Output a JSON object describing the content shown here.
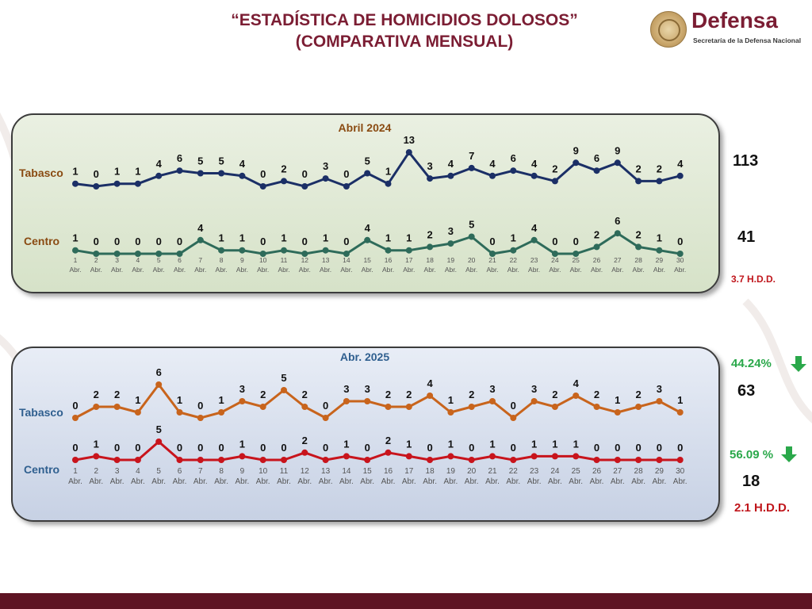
{
  "title": {
    "line1": "“ESTADÍSTICA DE HOMICIDIOS DOLOSOS”",
    "line2": "(COMPARATIVA MENSUAL)"
  },
  "logo": {
    "word": "Defensa",
    "subtitle": "Secretaría de la Defensa Nacional"
  },
  "colors": {
    "tabasco_2024": "#1b2f66",
    "centro_2024": "#2e6b5a",
    "tabasco_2025": "#c8641c",
    "centro_2025": "#c8141c",
    "label_brown": "#8a4b12",
    "label_blue": "#2f5f8f",
    "green": "#2aa84a",
    "red": "#c0161c",
    "title": "#7b1d33"
  },
  "chart_data": [
    {
      "type": "line",
      "title": "Abril 2024",
      "categories": [
        "1 Abr.",
        "2 Abr.",
        "3 Abr.",
        "4 Abr.",
        "5 Abr.",
        "6 Abr.",
        "7 Abr.",
        "8 Abr.",
        "9 Abr.",
        "10 Abr.",
        "11 Abr.",
        "12 Abr.",
        "13 Abr.",
        "14 Abr.",
        "15 Abr.",
        "16 Abr.",
        "17 Abr.",
        "18 Abr.",
        "19 Abr.",
        "20 Abr.",
        "21 Abr.",
        "22 Abr.",
        "23 Abr.",
        "24 Abr.",
        "25 Abr.",
        "26 Abr.",
        "27 Abr.",
        "28 Abr.",
        "29 Abr.",
        "30 Abr."
      ],
      "series": [
        {
          "name": "Tabasco",
          "values": [
            1,
            0,
            1,
            1,
            4,
            6,
            5,
            5,
            4,
            0,
            2,
            0,
            3,
            0,
            5,
            1,
            13,
            3,
            4,
            7,
            4,
            6,
            4,
            2,
            9,
            6,
            9,
            2,
            2,
            4
          ],
          "total": "113"
        },
        {
          "name": "Centro",
          "values": [
            1,
            0,
            0,
            0,
            0,
            0,
            4,
            1,
            1,
            0,
            1,
            0,
            1,
            0,
            4,
            1,
            1,
            2,
            3,
            5,
            0,
            1,
            4,
            0,
            0,
            2,
            6,
            2,
            1,
            0
          ],
          "total": "41",
          "rate": "3.7 H.D.D."
        }
      ]
    },
    {
      "type": "line",
      "title": "Abr. 2025",
      "categories": [
        "1 Abr.",
        "2 Abr.",
        "3 Abr.",
        "4 Abr.",
        "5 Abr.",
        "6 Abr.",
        "7 Abr.",
        "8 Abr.",
        "9 Abr.",
        "10 Abr.",
        "11 Abr.",
        "12 Abr.",
        "13 Abr.",
        "14 Abr.",
        "15 Abr.",
        "16 Abr.",
        "17 Abr.",
        "18 Abr.",
        "19 Abr.",
        "20 Abr.",
        "21 Abr.",
        "22 Abr.",
        "23 Abr.",
        "24 Abr.",
        "25 Abr.",
        "26 Abr.",
        "27 Abr.",
        "28 Abr.",
        "29 Abr.",
        "30 Abr."
      ],
      "series": [
        {
          "name": "Tabasco",
          "values": [
            0,
            2,
            2,
            1,
            6,
            1,
            0,
            1,
            3,
            2,
            5,
            2,
            0,
            3,
            3,
            2,
            2,
            4,
            1,
            2,
            3,
            0,
            3,
            2,
            4,
            2,
            1,
            2,
            3,
            1
          ],
          "total": "63",
          "change": "44.24%"
        },
        {
          "name": "Centro",
          "values": [
            0,
            1,
            0,
            0,
            5,
            0,
            0,
            0,
            1,
            0,
            0,
            2,
            0,
            1,
            0,
            2,
            1,
            0,
            1,
            0,
            1,
            0,
            1,
            1,
            1,
            0,
            0,
            0,
            0,
            0
          ],
          "total": "18",
          "change": "56.09 %",
          "rate": "2.1 H.D.D."
        }
      ]
    }
  ]
}
